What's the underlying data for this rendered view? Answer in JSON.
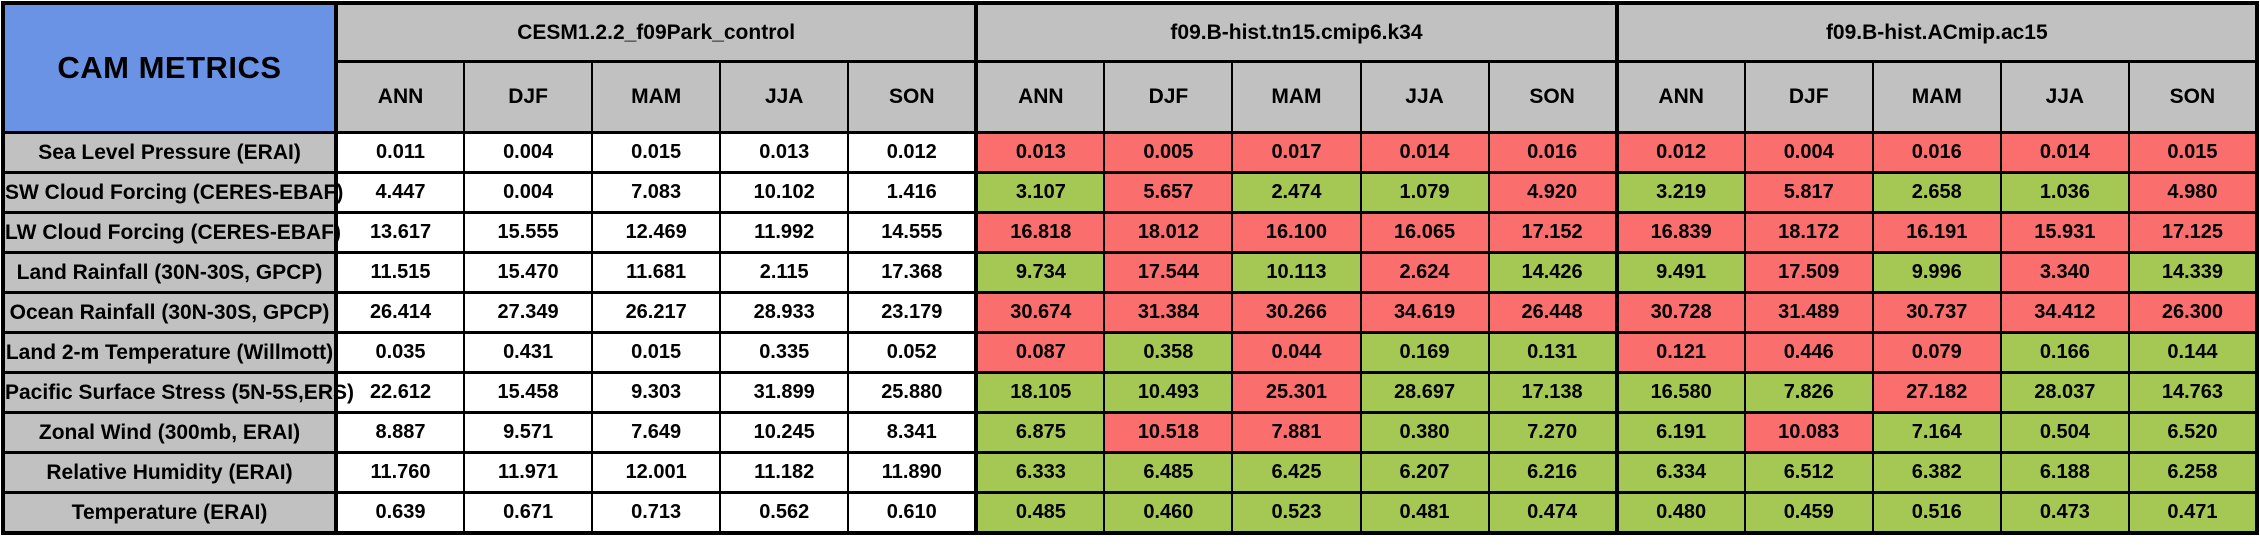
{
  "colors": {
    "header_blue": "#6A92E5",
    "header_gray": "#C1C1C1",
    "cell_white": "#FFFFFF",
    "cell_red": "#FA6E6E",
    "cell_green": "#A5C855",
    "border_black": "#000000"
  },
  "chart_data": {
    "type": "table",
    "title": "CAM METRICS",
    "model_groups": [
      "CESM1.2.2_f09Park_control",
      "f09.B-hist.tn15.cmip6.k34",
      "f09.B-hist.ACmip.ac15"
    ],
    "season_columns": [
      "ANN",
      "DJF",
      "MAM",
      "JJA",
      "SON"
    ],
    "cell_color_legend": {
      "w": "white (control/reference)",
      "r": "red (worse)",
      "g": "green (better)"
    },
    "metrics": [
      {
        "label": "Sea Level Pressure (ERAI)",
        "values": [
          [
            "0.011",
            "0.004",
            "0.015",
            "0.013",
            "0.012"
          ],
          [
            "0.013",
            "0.005",
            "0.017",
            "0.014",
            "0.016"
          ],
          [
            "0.012",
            "0.004",
            "0.016",
            "0.014",
            "0.015"
          ]
        ],
        "colors": [
          "wwwww",
          "rrrrr",
          "rrrrr"
        ]
      },
      {
        "label": "SW Cloud Forcing (CERES-EBAF)",
        "values": [
          [
            "4.447",
            "0.004",
            "7.083",
            "10.102",
            "1.416"
          ],
          [
            "3.107",
            "5.657",
            "2.474",
            "1.079",
            "4.920"
          ],
          [
            "3.219",
            "5.817",
            "2.658",
            "1.036",
            "4.980"
          ]
        ],
        "colors": [
          "wwwww",
          "grggr",
          "grggr"
        ]
      },
      {
        "label": "LW Cloud Forcing (CERES-EBAF)",
        "values": [
          [
            "13.617",
            "15.555",
            "12.469",
            "11.992",
            "14.555"
          ],
          [
            "16.818",
            "18.012",
            "16.100",
            "16.065",
            "17.152"
          ],
          [
            "16.839",
            "18.172",
            "16.191",
            "15.931",
            "17.125"
          ]
        ],
        "colors": [
          "wwwww",
          "rrrrr",
          "rrrrr"
        ]
      },
      {
        "label": "Land Rainfall (30N-30S, GPCP)",
        "values": [
          [
            "11.515",
            "15.470",
            "11.681",
            "2.115",
            "17.368"
          ],
          [
            "9.734",
            "17.544",
            "10.113",
            "2.624",
            "14.426"
          ],
          [
            "9.491",
            "17.509",
            "9.996",
            "3.340",
            "14.339"
          ]
        ],
        "colors": [
          "wwwww",
          "grgrg",
          "grgrg"
        ]
      },
      {
        "label": "Ocean Rainfall (30N-30S, GPCP)",
        "values": [
          [
            "26.414",
            "27.349",
            "26.217",
            "28.933",
            "23.179"
          ],
          [
            "30.674",
            "31.384",
            "30.266",
            "34.619",
            "26.448"
          ],
          [
            "30.728",
            "31.489",
            "30.737",
            "34.412",
            "26.300"
          ]
        ],
        "colors": [
          "wwwww",
          "rrrrr",
          "rrrrr"
        ]
      },
      {
        "label": "Land 2-m Temperature (Willmott)",
        "values": [
          [
            "0.035",
            "0.431",
            "0.015",
            "0.335",
            "0.052"
          ],
          [
            "0.087",
            "0.358",
            "0.044",
            "0.169",
            "0.131"
          ],
          [
            "0.121",
            "0.446",
            "0.079",
            "0.166",
            "0.144"
          ]
        ],
        "colors": [
          "wwwww",
          "rgrgg",
          "rrrgg"
        ]
      },
      {
        "label": "Pacific Surface Stress (5N-5S,ERS)",
        "values": [
          [
            "22.612",
            "15.458",
            "9.303",
            "31.899",
            "25.880"
          ],
          [
            "18.105",
            "10.493",
            "25.301",
            "28.697",
            "17.138"
          ],
          [
            "16.580",
            "7.826",
            "27.182",
            "28.037",
            "14.763"
          ]
        ],
        "colors": [
          "wwwww",
          "ggrgg",
          "ggrgg"
        ]
      },
      {
        "label": "Zonal Wind (300mb, ERAI)",
        "values": [
          [
            "8.887",
            "9.571",
            "7.649",
            "10.245",
            "8.341"
          ],
          [
            "6.875",
            "10.518",
            "7.881",
            "0.380",
            "7.270"
          ],
          [
            "6.191",
            "10.083",
            "7.164",
            "0.504",
            "6.520"
          ]
        ],
        "colors": [
          "wwwww",
          "grrgg",
          "grggg"
        ]
      },
      {
        "label": "Relative Humidity (ERAI)",
        "values": [
          [
            "11.760",
            "11.971",
            "12.001",
            "11.182",
            "11.890"
          ],
          [
            "6.333",
            "6.485",
            "6.425",
            "6.207",
            "6.216"
          ],
          [
            "6.334",
            "6.512",
            "6.382",
            "6.188",
            "6.258"
          ]
        ],
        "colors": [
          "wwwww",
          "ggggg",
          "ggggg"
        ]
      },
      {
        "label": "Temperature (ERAI)",
        "values": [
          [
            "0.639",
            "0.671",
            "0.713",
            "0.562",
            "0.610"
          ],
          [
            "0.485",
            "0.460",
            "0.523",
            "0.481",
            "0.474"
          ],
          [
            "0.480",
            "0.459",
            "0.516",
            "0.473",
            "0.471"
          ]
        ],
        "colors": [
          "wwwww",
          "ggggg",
          "ggggg"
        ]
      }
    ]
  }
}
